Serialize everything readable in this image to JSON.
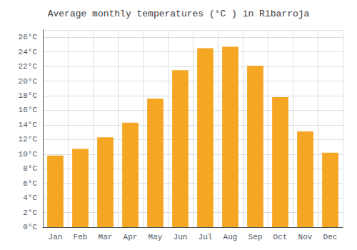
{
  "chart_data": {
    "type": "bar",
    "title": "Average monthly temperatures (°C ) in Ribarroja",
    "categories": [
      "Jan",
      "Feb",
      "Mar",
      "Apr",
      "May",
      "Jun",
      "Jul",
      "Aug",
      "Sep",
      "Oct",
      "Nov",
      "Dec"
    ],
    "values": [
      9.8,
      10.7,
      12.3,
      14.3,
      17.6,
      21.5,
      24.5,
      24.7,
      22.1,
      17.8,
      13.1,
      10.2
    ],
    "color": "#F5A623",
    "ylim": [
      0,
      27
    ],
    "yticks": [
      {
        "value": 0,
        "label": "0°C"
      },
      {
        "value": 2,
        "label": "2°C"
      },
      {
        "value": 4,
        "label": "4°C"
      },
      {
        "value": 6,
        "label": "6°C"
      },
      {
        "value": 8,
        "label": "8°C"
      },
      {
        "value": 10,
        "label": "10°C"
      },
      {
        "value": 12,
        "label": "12°C"
      },
      {
        "value": 14,
        "label": "14°C"
      },
      {
        "value": 16,
        "label": "16°C"
      },
      {
        "value": 18,
        "label": "18°C"
      },
      {
        "value": 20,
        "label": "20°C"
      },
      {
        "value": 22,
        "label": "22°C"
      },
      {
        "value": 24,
        "label": "24°C"
      },
      {
        "value": 26,
        "label": "26°C"
      }
    ],
    "grid": true
  }
}
